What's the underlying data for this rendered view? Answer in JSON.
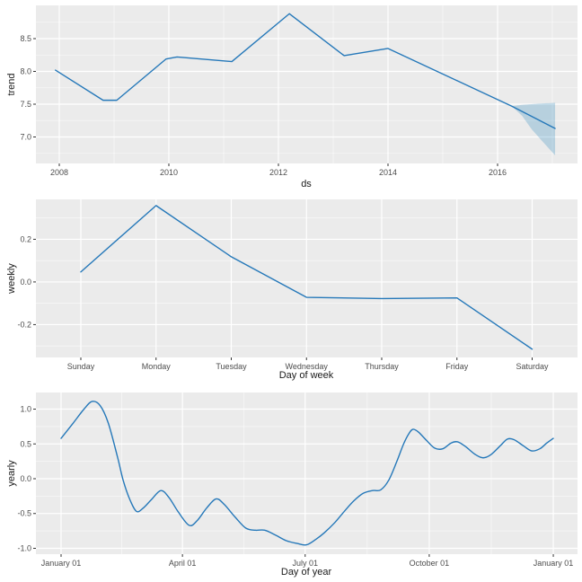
{
  "figure": {
    "background": "#ffffff",
    "panel_background": "#ebebeb",
    "grid_color": "#ffffff",
    "tick_mark_color": "#333333",
    "tick_label_color": "#4d4d4d",
    "axis_title_color": "#1a1a1a",
    "line_color": "#2578b9",
    "band_fill": "rgba(0,114,178,0.22)"
  },
  "chart_data": [
    {
      "type": "line",
      "name": "trend-component",
      "xlabel": "ds",
      "ylabel": "trend",
      "grid": true,
      "legend": "none",
      "x_domain": [
        2007.574,
        2017.459
      ],
      "y_domain": [
        6.596,
        9.007
      ],
      "x_ticks": [
        {
          "value": 2008,
          "label": "2008"
        },
        {
          "value": 2010,
          "label": "2010"
        },
        {
          "value": 2012,
          "label": "2012"
        },
        {
          "value": 2014,
          "label": "2014"
        },
        {
          "value": 2016,
          "label": "2016"
        }
      ],
      "x_minor_ticks": [
        2009,
        2011,
        2013,
        2015,
        2017
      ],
      "y_ticks": [
        {
          "value": 7.0,
          "label": "7.0"
        },
        {
          "value": 7.5,
          "label": "7.5"
        },
        {
          "value": 8.0,
          "label": "8.0"
        },
        {
          "value": 8.5,
          "label": "8.5"
        }
      ],
      "y_minor_ticks": [
        6.75,
        7.25,
        7.75,
        8.25,
        8.75
      ],
      "smooth": false,
      "series": {
        "x": [
          2007.93,
          2008.8,
          2009.05,
          2009.95,
          2010.15,
          2011.15,
          2012.2,
          2013.2,
          2014.0,
          2016.26,
          2017.05
        ],
        "y": [
          8.02,
          7.56,
          7.56,
          8.19,
          8.22,
          8.15,
          8.88,
          8.24,
          8.35,
          7.47,
          7.13
        ]
      },
      "band": {
        "x": [
          2016.26,
          2016.45,
          2016.62,
          2016.8,
          2017.05
        ],
        "upper": [
          7.47,
          7.49,
          7.5,
          7.51,
          7.52
        ],
        "lower": [
          7.47,
          7.32,
          7.12,
          6.95,
          6.72
        ]
      }
    },
    {
      "type": "line",
      "name": "weekly-component",
      "xlabel": "Day of week",
      "ylabel": "weekly",
      "grid": true,
      "legend": "none",
      "x_domain": [
        0.403,
        7.603
      ],
      "y_domain": [
        -0.354,
        0.387
      ],
      "x_ticks": [
        {
          "value": 1,
          "label": "Sunday"
        },
        {
          "value": 2,
          "label": "Monday"
        },
        {
          "value": 3,
          "label": "Tuesday"
        },
        {
          "value": 4,
          "label": "Wednesday"
        },
        {
          "value": 5,
          "label": "Thursday"
        },
        {
          "value": 6,
          "label": "Friday"
        },
        {
          "value": 7,
          "label": "Saturday"
        }
      ],
      "x_minor_ticks": [],
      "y_ticks": [
        {
          "value": 0.2,
          "label": "0.2"
        },
        {
          "value": 0.0,
          "label": "0.0"
        },
        {
          "value": -0.2,
          "label": "-0.2"
        }
      ],
      "y_minor_ticks": [
        0.3,
        0.1,
        -0.1,
        -0.3
      ],
      "smooth": false,
      "categories": [
        "Sunday",
        "Monday",
        "Tuesday",
        "Wednesday",
        "Thursday",
        "Friday",
        "Saturday"
      ],
      "series": {
        "x": [
          1,
          2,
          3,
          4,
          5,
          6,
          7
        ],
        "y": [
          0.047,
          0.358,
          0.118,
          -0.072,
          -0.078,
          -0.075,
          -0.315
        ]
      }
    },
    {
      "type": "line",
      "name": "yearly-component",
      "xlabel": "Day of year",
      "ylabel": "yearly",
      "grid": true,
      "legend": "none",
      "x_domain": [
        -17.65,
        383.95
      ],
      "y_domain": [
        -1.084,
        1.239
      ],
      "x_ticks": [
        {
          "value": 1,
          "label": "January 01"
        },
        {
          "value": 91,
          "label": "April 01"
        },
        {
          "value": 182,
          "label": "July 01"
        },
        {
          "value": 274,
          "label": "October 01"
        },
        {
          "value": 366,
          "label": "January 01"
        }
      ],
      "x_minor_ticks": [
        46,
        136.5,
        228,
        320
      ],
      "y_ticks": [
        {
          "value": 1.0,
          "label": "1.0"
        },
        {
          "value": 0.5,
          "label": "0.5"
        },
        {
          "value": 0.0,
          "label": "0.0"
        },
        {
          "value": -0.5,
          "label": "-0.5"
        },
        {
          "value": -1.0,
          "label": "-1.0"
        }
      ],
      "y_minor_ticks": [
        0.75,
        0.25,
        -0.25,
        -0.75
      ],
      "smooth": true,
      "series": {
        "x": [
          1,
          10,
          18,
          24,
          30,
          36,
          43,
          47,
          52,
          57,
          62,
          68,
          75,
          81,
          88,
          96,
          102,
          109,
          116,
          122,
          130,
          138,
          145,
          152,
          160,
          168,
          176,
          183,
          190,
          196,
          204,
          211,
          218,
          225,
          232,
          238,
          244,
          250,
          255,
          259,
          262,
          266,
          272,
          278,
          284,
          290,
          295,
          301,
          308,
          314,
          320,
          327,
          332,
          337,
          344,
          350,
          356,
          361,
          366
        ],
        "y": [
          0.58,
          0.8,
          1.0,
          1.11,
          1.05,
          0.8,
          0.3,
          -0.02,
          -0.3,
          -0.47,
          -0.42,
          -0.3,
          -0.17,
          -0.27,
          -0.48,
          -0.67,
          -0.6,
          -0.42,
          -0.29,
          -0.37,
          -0.55,
          -0.71,
          -0.74,
          -0.74,
          -0.81,
          -0.89,
          -0.93,
          -0.95,
          -0.87,
          -0.78,
          -0.63,
          -0.47,
          -0.32,
          -0.21,
          -0.17,
          -0.16,
          -0.02,
          0.25,
          0.5,
          0.65,
          0.71,
          0.67,
          0.55,
          0.44,
          0.43,
          0.51,
          0.53,
          0.46,
          0.35,
          0.3,
          0.35,
          0.48,
          0.57,
          0.56,
          0.47,
          0.4,
          0.43,
          0.51,
          0.58
        ]
      }
    }
  ]
}
